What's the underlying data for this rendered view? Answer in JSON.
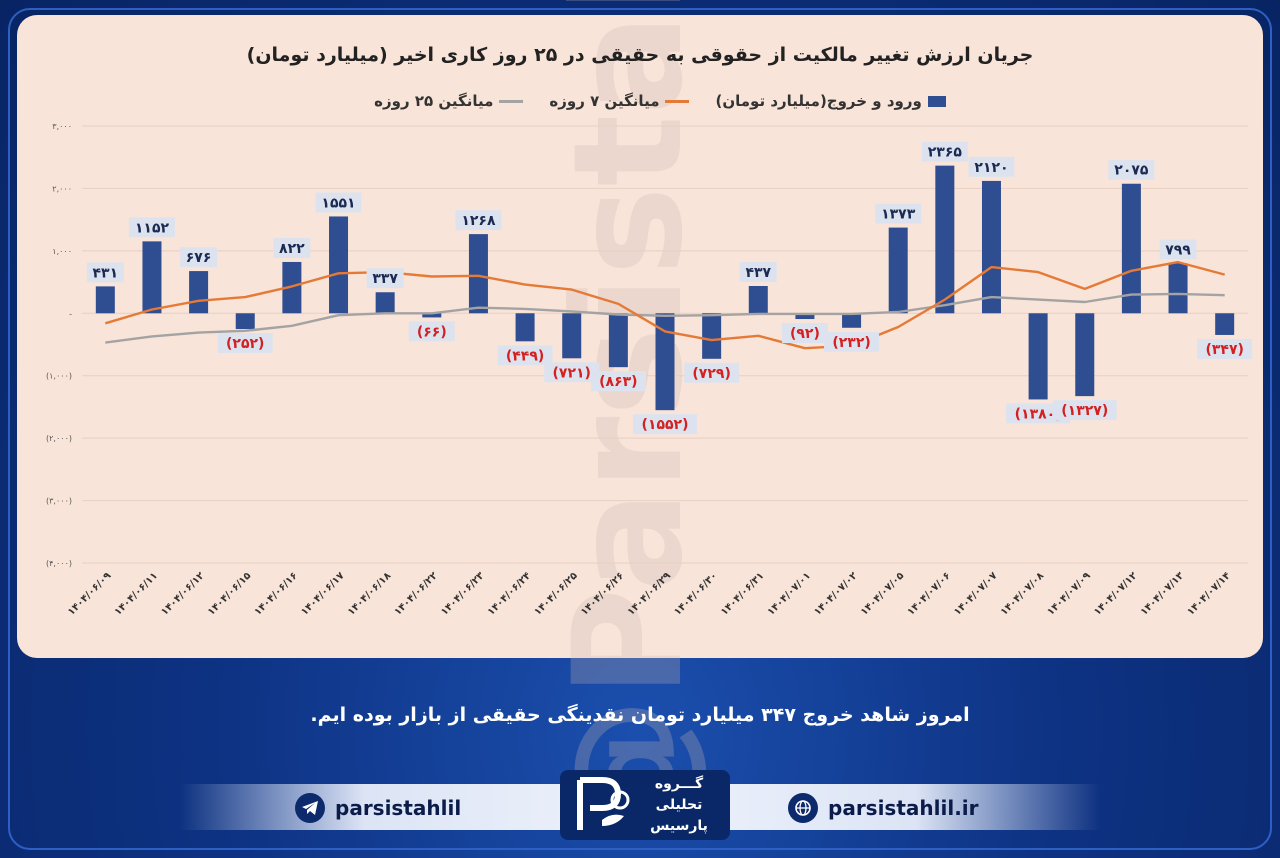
{
  "chart_data": {
    "type": "bar",
    "title": "جریان ارزش تغییر مالکیت از حقوقی به حقیقی در ۲۵ روز کاری اخیر (میلیارد تومان)",
    "categories": [
      "۱۴۰۴/۰۶/۰۹",
      "۱۴۰۴/۰۶/۱۱",
      "۱۴۰۴/۰۶/۱۲",
      "۱۴۰۴/۰۶/۱۵",
      "۱۴۰۴/۰۶/۱۶",
      "۱۴۰۴/۰۶/۱۷",
      "۱۴۰۴/۰۶/۱۸",
      "۱۴۰۴/۰۶/۲۲",
      "۱۴۰۴/۰۶/۲۳",
      "۱۴۰۴/۰۶/۲۴",
      "۱۴۰۴/۰۶/۲۵",
      "۱۴۰۴/۰۶/۲۶",
      "۱۴۰۴/۰۶/۲۹",
      "۱۴۰۴/۰۶/۳۰",
      "۱۴۰۴/۰۶/۳۱",
      "۱۴۰۴/۰۷/۰۱",
      "۱۴۰۴/۰۷/۰۲",
      "۱۴۰۴/۰۷/۰۵",
      "۱۴۰۴/۰۷/۰۶",
      "۱۴۰۴/۰۷/۰۷",
      "۱۴۰۴/۰۷/۰۸",
      "۱۴۰۴/۰۷/۰۹",
      "۱۴۰۴/۰۷/۱۲",
      "۱۴۰۴/۰۷/۱۳",
      "۱۴۰۴/۰۷/۱۴"
    ],
    "series": [
      {
        "name": "ورود و خروج(میلیارد تومان)",
        "kind": "bar",
        "color": "#2e4e91",
        "values": [
          431,
          1152,
          676,
          -252,
          822,
          1551,
          337,
          -66,
          1268,
          -449,
          -721,
          -863,
          -1552,
          -729,
          437,
          -92,
          -232,
          1373,
          2365,
          2120,
          -1380,
          -1327,
          2075,
          799,
          -347
        ]
      },
      {
        "name": "میانگین ۷ روزه",
        "kind": "line",
        "color": "#e57a36",
        "values": [
          -160,
          60,
          200,
          260,
          430,
          640,
          660,
          590,
          600,
          460,
          380,
          150,
          -290,
          -430,
          -360,
          -560,
          -520,
          -220,
          220,
          740,
          660,
          390,
          680,
          820,
          620
        ]
      },
      {
        "name": "میانگین ۲۵ روزه",
        "kind": "line",
        "color": "#a3a3a3",
        "values": [
          -470,
          -370,
          -310,
          -280,
          -200,
          -30,
          0,
          0,
          90,
          70,
          30,
          -20,
          -40,
          -30,
          -10,
          -10,
          -10,
          20,
          130,
          260,
          220,
          180,
          300,
          310,
          290
        ]
      }
    ],
    "data_labels": [
      "۴۳۱",
      "۱۱۵۲",
      "۶۷۶",
      "(۲۵۲)",
      "۸۲۲",
      "۱۵۵۱",
      "۳۳۷",
      "(۶۶)",
      "۱۲۶۸",
      "(۴۴۹)",
      "(۷۲۱)",
      "(۸۶۳)",
      "(۱۵۵۲)",
      "(۷۲۹)",
      "۴۳۷",
      "(۹۲)",
      "(۲۳۲)",
      "۱۳۷۳",
      "۲۳۶۵",
      "۲۱۲۰",
      "(۱۳۸۰)",
      "(۱۳۲۷)",
      "۲۰۷۵",
      "۷۹۹",
      "(۳۴۷)"
    ],
    "y_ticks": [
      3000,
      2000,
      1000,
      0,
      -1000,
      -2000,
      -3000,
      -4000
    ],
    "y_tick_labels": [
      "۳,۰۰۰",
      "۲,۰۰۰",
      "۱,۰۰۰",
      "-",
      "(۱,۰۰۰)",
      "(۲,۰۰۰)",
      "(۳,۰۰۰)",
      "(۴,۰۰۰)"
    ],
    "ylim": [
      -4000,
      3000
    ],
    "grid": true,
    "legend_placement": "top-center"
  },
  "watermark": "@Parsistahlil",
  "caption": "امروز شاهد خروج ۳۴۷ میلیارد تومان نقدینگی حقیقی از بازار بوده ایم.",
  "footer": {
    "telegram_handle": "parsistahlil",
    "website": "parsistahlil.ir",
    "logo_lines": [
      "گـــروه",
      "تحلیلی",
      "پارسیس"
    ]
  },
  "colors": {
    "positive_label": "#1a2a52",
    "negative_label": "#d42020",
    "label_box": "#dde3ee"
  }
}
